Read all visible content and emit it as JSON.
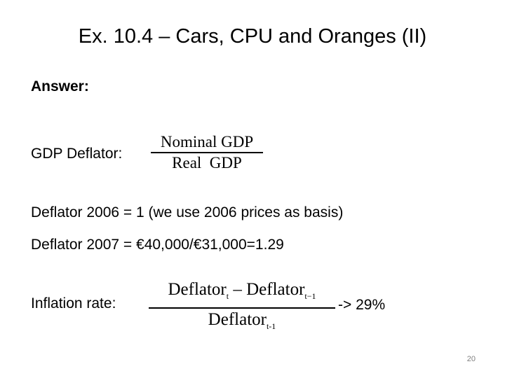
{
  "slide": {
    "title": "Ex. 10.4 – Cars, CPU and Oranges (II)",
    "answer_heading": "Answer:",
    "gdp_deflator": {
      "label": "GDP Deflator:",
      "numerator": "Nominal GDP",
      "denominator": "Real  GDP"
    },
    "lines": [
      "Deflator 2006 = 1 (we use 2006 prices as basis)",
      "Deflator 2007 = €40,000/€31,000=1.29"
    ],
    "inflation": {
      "label": "Inflation rate:",
      "num_term1": "Deflator",
      "num_sub1": "t",
      "num_minus": " – ",
      "num_term2": "Deflator",
      "num_sub2": "t−1",
      "den_term": "Deflator",
      "den_sub": "t-1",
      "result": "-> 29%"
    },
    "page_number": "20"
  }
}
